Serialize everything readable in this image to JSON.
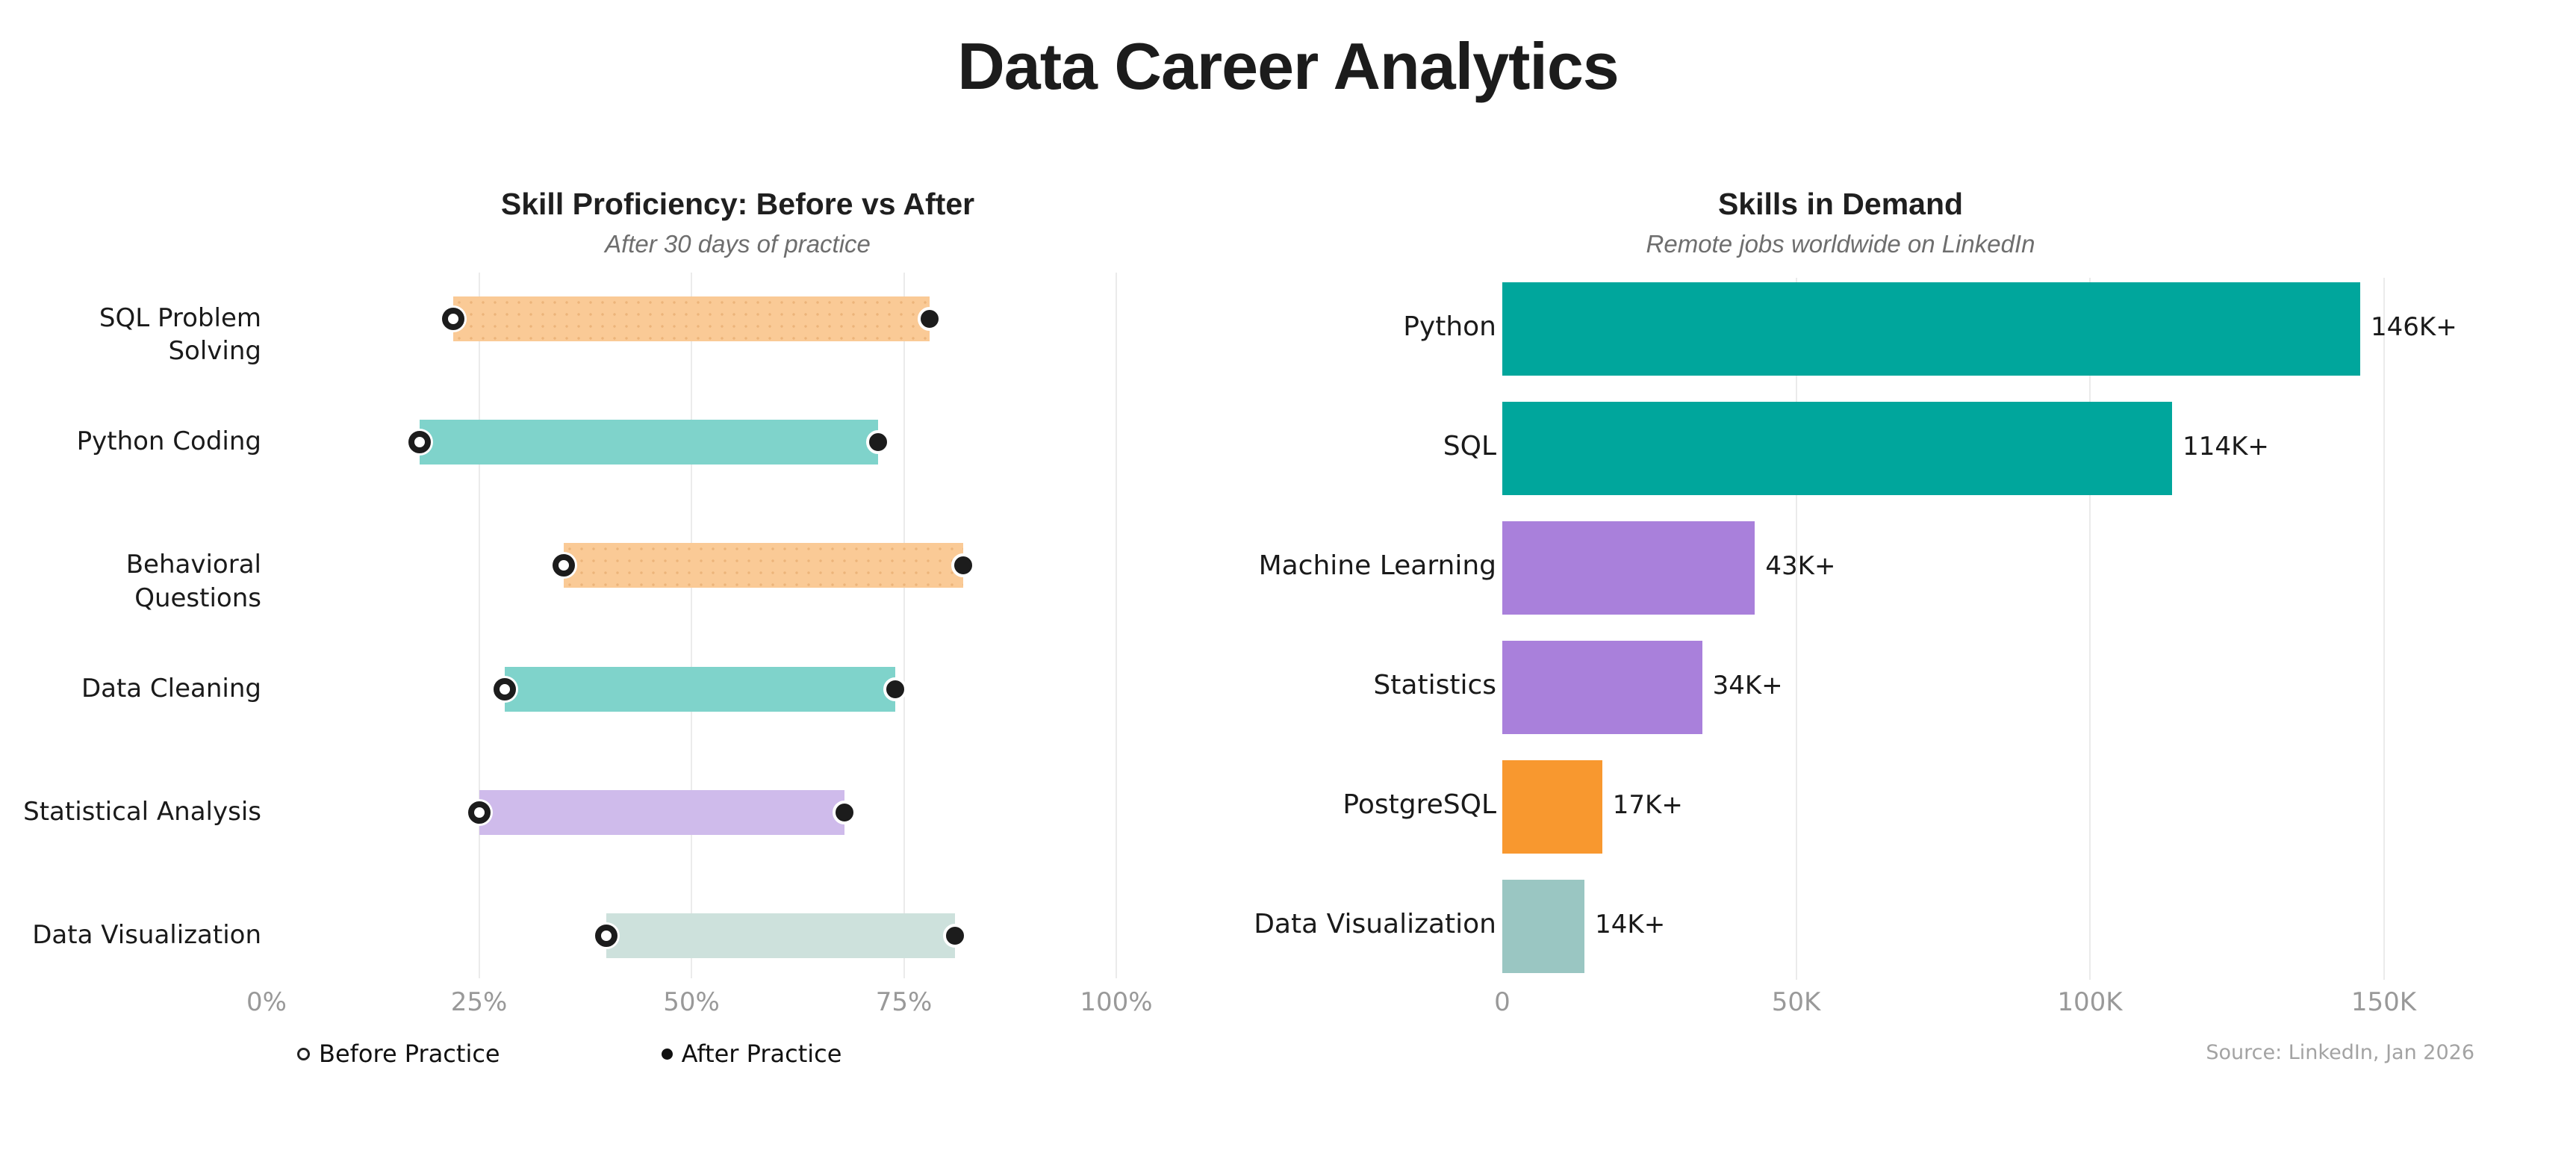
{
  "page": {
    "title": "Data Career Analytics",
    "background": "#ffffff"
  },
  "chart_data": [
    {
      "type": "bar",
      "variant": "dumbbell",
      "title": "Skill Proficiency: Before vs After",
      "subtitle": "After 30 days of practice",
      "categories": [
        "SQL Problem Solving",
        "Python Coding",
        "Behavioral Questions",
        "Data Cleaning",
        "Statistical Analysis",
        "Data Visualization"
      ],
      "series": [
        {
          "name": "Before Practice",
          "marker": "open-circle",
          "values": [
            22,
            18,
            35,
            28,
            25,
            40
          ]
        },
        {
          "name": "After Practice",
          "marker": "filled-circle",
          "values": [
            78,
            72,
            82,
            74,
            68,
            81
          ]
        }
      ],
      "bar_colors": [
        "#FACA96",
        "#7FD3CB",
        "#FACA96",
        "#7FD3CB",
        "#CFBBEB",
        "#CDE1DC"
      ],
      "bar_texture": [
        "dots",
        "none",
        "dots",
        "none",
        "none",
        "none"
      ],
      "marker_color": "#1c1c1c",
      "xlim": [
        0,
        100
      ],
      "tick_values": [
        0,
        25,
        50,
        75,
        100
      ],
      "tick_labels": [
        "0%",
        "25%",
        "50%",
        "75%",
        "100%"
      ],
      "grid": true,
      "legend_position": "bottom"
    },
    {
      "type": "bar",
      "variant": "horizontal",
      "title": "Skills in Demand",
      "subtitle": "Remote jobs worldwide on LinkedIn",
      "categories": [
        "Python",
        "SQL",
        "Machine Learning",
        "Statistics",
        "PostgreSQL",
        "Data Visualization"
      ],
      "values": [
        146000,
        114000,
        43000,
        34000,
        17000,
        14000
      ],
      "value_labels": [
        "146K+",
        "114K+",
        "43K+",
        "34K+",
        "17K+",
        "14K+"
      ],
      "bar_colors": [
        "#00A69C",
        "#00A69C",
        "#A980DB",
        "#A980DB",
        "#F8982F",
        "#9AC6C2"
      ],
      "xlim": [
        0,
        155000
      ],
      "tick_values": [
        0,
        50000,
        100000,
        150000
      ],
      "tick_labels": [
        "0",
        "50K",
        "100K",
        "150K"
      ],
      "grid": true,
      "source": "Source: LinkedIn, Jan 2026"
    }
  ]
}
